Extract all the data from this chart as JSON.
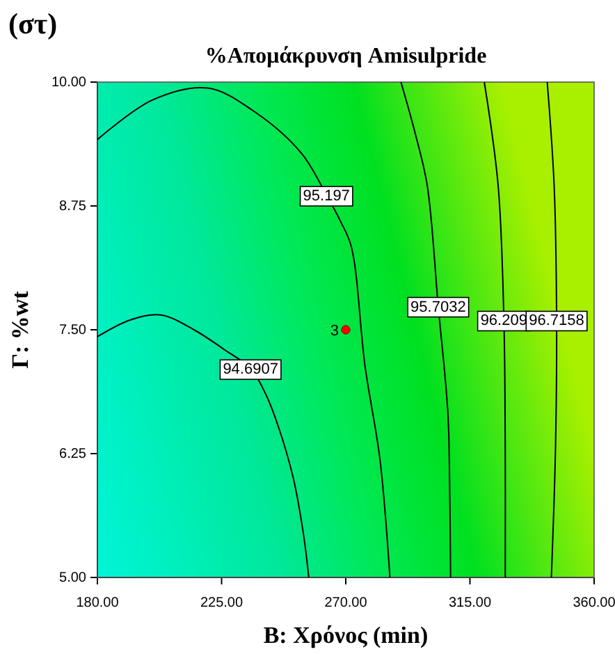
{
  "chart_data": {
    "type": "line",
    "title": "%Απομάκρυνση Amisulpride",
    "xlabel": "B: Χρόνος (min)",
    "ylabel": "Γ: %wt",
    "annotations": [
      "(στ)",
      {
        "text": "3",
        "x": 270,
        "y": 7.5
      }
    ],
    "xlim": [
      180,
      360
    ],
    "ylim": [
      5,
      10
    ],
    "xticks": [
      {
        "value": 180,
        "label": "180.00"
      },
      {
        "value": 225,
        "label": "225.00"
      },
      {
        "value": 270,
        "label": "270.00"
      },
      {
        "value": 315,
        "label": "315.00"
      },
      {
        "value": 360,
        "label": "360.00"
      }
    ],
    "yticks": [
      {
        "value": 5,
        "label": "5.00"
      },
      {
        "value": 6.25,
        "label": "6.25"
      },
      {
        "value": 7.5,
        "label": "7.50"
      },
      {
        "value": 8.75,
        "label": "8.75"
      },
      {
        "value": 10,
        "label": "10.00"
      }
    ],
    "legend": false,
    "grid": false,
    "marker": "none",
    "line_style": "solid",
    "series": [
      {
        "name": "94.6907",
        "color": "#000000",
        "x": [
          180,
          192,
          203,
          215,
          226,
          235.5,
          241,
          245.6,
          251,
          254.6,
          256.6
        ],
        "values": [
          7.43,
          7.6,
          7.65,
          7.5,
          7.3,
          7.11,
          6.85,
          6.52,
          6.0,
          5.45,
          5.0
        ]
      },
      {
        "name": "95.197",
        "color": "#000000",
        "x": [
          180,
          200,
          220,
          237,
          254,
          263,
          268,
          272,
          277,
          282.4,
          286
        ],
        "values": [
          9.42,
          9.82,
          9.94,
          9.7,
          9.28,
          8.86,
          8.6,
          8.34,
          7.13,
          6.19,
          5.0
        ]
      },
      {
        "name": "95.7032",
        "color": "#000000",
        "x": [
          290,
          295,
          299.5,
          303.5,
          307,
          307.7,
          308
        ],
        "values": [
          10,
          9.5,
          8.96,
          7.74,
          6.66,
          5.8,
          5.0
        ]
      },
      {
        "name": "96.209",
        "color": "#000000",
        "x": [
          320.2,
          325.2,
          327.3,
          327.8,
          327.8
        ],
        "values": [
          10,
          8.96,
          7.6,
          6.3,
          5.0
        ]
      },
      {
        "name": "96.7158",
        "color": "#000000",
        "x": [
          343,
          345.5,
          346.4,
          346,
          344.5
        ],
        "values": [
          10,
          8.96,
          7.6,
          6.3,
          5.0
        ]
      },
      {
        "type": "scatter",
        "marker": "circle",
        "color": "#ff0000",
        "x": [
          270
        ],
        "values": [
          7.5
        ]
      }
    ]
  }
}
